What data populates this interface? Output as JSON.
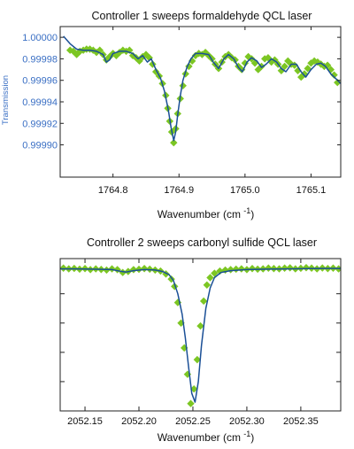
{
  "chart_data": [
    {
      "type": "scatter",
      "title": "Controller 1 sweeps formaldehyde QCL laser",
      "xlabel": "Wavenumber (cm",
      "xlabel_sup": "-1",
      "xlabel_end": ")",
      "ylabel": "Transmission",
      "xlim": [
        1764.72,
        1765.145
      ],
      "ylim": [
        0.99987,
        1.00001
      ],
      "xticks": [
        1764.8,
        1764.9,
        1765.0,
        1765.1
      ],
      "xtick_labels": [
        "1764.8",
        "1764.9",
        "1765.0",
        "1765.1"
      ],
      "yticks": [
        0.9999,
        0.99992,
        0.99994,
        0.99996,
        0.99998,
        1.0
      ],
      "ytick_labels": [
        "0.99990",
        "0.99992",
        "0.99994",
        "0.99996",
        "0.99998",
        "1.00000"
      ],
      "axis_color": "#3a6fc4",
      "marker_color": "#7cc623",
      "line_color": "#1a4f96",
      "series": [
        {
          "kind": "markers",
          "x": [
            1764.735,
            1764.74,
            1764.745,
            1764.75,
            1764.755,
            1764.76,
            1764.765,
            1764.77,
            1764.775,
            1764.78,
            1764.785,
            1764.79,
            1764.795,
            1764.8,
            1764.805,
            1764.81,
            1764.815,
            1764.82,
            1764.825,
            1764.83,
            1764.835,
            1764.84,
            1764.845,
            1764.85,
            1764.855,
            1764.86,
            1764.865,
            1764.87,
            1764.875,
            1764.88,
            1764.883,
            1764.886,
            1764.889,
            1764.892,
            1764.895,
            1764.898,
            1764.902,
            1764.906,
            1764.91,
            1764.915,
            1764.92,
            1764.925,
            1764.93,
            1764.935,
            1764.94,
            1764.945,
            1764.95,
            1764.955,
            1764.96,
            1764.965,
            1764.97,
            1764.975,
            1764.98,
            1764.985,
            1764.99,
            1764.995,
            1765.0,
            1765.005,
            1765.01,
            1765.015,
            1765.02,
            1765.025,
            1765.03,
            1765.035,
            1765.04,
            1765.045,
            1765.05,
            1765.055,
            1765.06,
            1765.065,
            1765.07,
            1765.075,
            1765.08,
            1765.085,
            1765.09,
            1765.095,
            1765.1,
            1765.105,
            1765.11,
            1765.115,
            1765.12,
            1765.125,
            1765.13,
            1765.135,
            1765.14
          ],
          "y": [
            0.999988,
            0.999987,
            0.999984,
            0.999987,
            0.999988,
            0.999989,
            0.999989,
            0.999988,
            0.999986,
            0.999988,
            0.999984,
            0.999979,
            0.999982,
            0.999985,
            0.999983,
            0.999986,
            0.999988,
            0.999987,
            0.999988,
            0.999983,
            0.999981,
            0.999978,
            0.999982,
            0.999984,
            0.999981,
            0.999975,
            0.999968,
            0.999964,
            0.999957,
            0.999946,
            0.999934,
            0.999922,
            0.999912,
            0.999902,
            0.999915,
            0.999929,
            0.999943,
            0.999955,
            0.999966,
            0.999973,
            0.999978,
            0.999983,
            0.999985,
            0.999984,
            0.999986,
            0.999983,
            0.99998,
            0.999975,
            0.999971,
            0.999977,
            0.999982,
            0.999984,
            0.999981,
            0.999979,
            0.999973,
            0.99997,
            0.999976,
            0.999982,
            0.99998,
            0.999976,
            0.99997,
            0.999973,
            0.99998,
            0.999981,
            0.999977,
            0.999979,
            0.999975,
            0.999969,
            0.999973,
            0.999978,
            0.999975,
            0.999974,
            0.999969,
            0.999963,
            0.999966,
            0.999971,
            0.999976,
            0.999978,
            0.999977,
            0.999975,
            0.999973,
            0.999974,
            0.99997,
            0.999965,
            0.999958
          ]
        },
        {
          "kind": "line",
          "x": [
            1764.725,
            1764.735,
            1764.745,
            1764.755,
            1764.765,
            1764.775,
            1764.785,
            1764.79,
            1764.795,
            1764.8,
            1764.81,
            1764.82,
            1764.83,
            1764.838,
            1764.845,
            1764.852,
            1764.858,
            1764.865,
            1764.872,
            1764.878,
            1764.884,
            1764.888,
            1764.892,
            1764.895,
            1764.898,
            1764.902,
            1764.906,
            1764.912,
            1764.918,
            1764.925,
            1764.935,
            1764.945,
            1764.952,
            1764.96,
            1764.968,
            1764.975,
            1764.983,
            1764.99,
            1764.996,
            1765.003,
            1765.01,
            1765.018,
            1765.025,
            1765.032,
            1765.04,
            1765.048,
            1765.055,
            1765.062,
            1765.07,
            1765.078,
            1765.085,
            1765.092,
            1765.1,
            1765.108,
            1765.115,
            1765.122,
            1765.13,
            1765.137,
            1765.145
          ],
          "y": [
            1.000001,
            0.999994,
            0.999989,
            0.999988,
            0.999988,
            0.999987,
            0.999984,
            0.999977,
            0.999979,
            0.999985,
            0.999987,
            0.999987,
            0.999985,
            0.99998,
            0.999983,
            0.999977,
            0.99998,
            0.99997,
            0.999962,
            0.99995,
            0.999932,
            0.999916,
            0.999904,
            0.999912,
            0.999928,
            0.999946,
            0.99996,
            0.999972,
            0.99998,
            0.999985,
            0.999985,
            0.999984,
            0.999977,
            0.999971,
            0.99998,
            0.999984,
            0.99998,
            0.999972,
            0.999968,
            0.999977,
            0.999981,
            0.999978,
            0.999972,
            0.999975,
            0.99998,
            0.999977,
            0.999971,
            0.999968,
            0.999975,
            0.999975,
            0.999968,
            0.999963,
            0.99997,
            0.999975,
            0.999976,
            0.999973,
            0.999966,
            0.999962,
            0.999957
          ]
        }
      ]
    },
    {
      "type": "scatter",
      "title": "Controller 2 sweeps carbonyl sulfide QCL laser",
      "xlabel": "Wavenumber (cm",
      "xlabel_sup": "-1",
      "xlabel_end": ")",
      "xlim": [
        2052.127,
        2052.387
      ],
      "ylim": [
        0,
        1.04
      ],
      "xticks": [
        2052.15,
        2052.2,
        2052.25,
        2052.3,
        2052.35
      ],
      "xtick_labels": [
        "2052.15",
        "2052.20",
        "2052.25",
        "2052.30",
        "2052.35"
      ],
      "yticks": [
        0.2,
        0.4,
        0.6,
        0.8
      ],
      "axis_color": "#222222",
      "marker_color": "#7cc623",
      "line_color": "#1a4f96",
      "series": [
        {
          "kind": "markers",
          "x": [
            2052.13,
            2052.135,
            2052.14,
            2052.145,
            2052.15,
            2052.155,
            2052.16,
            2052.165,
            2052.17,
            2052.175,
            2052.18,
            2052.185,
            2052.19,
            2052.195,
            2052.2,
            2052.205,
            2052.21,
            2052.215,
            2052.22,
            2052.225,
            2052.23,
            2052.233,
            2052.236,
            2052.239,
            2052.242,
            2052.245,
            2052.248,
            2052.251,
            2052.254,
            2052.257,
            2052.26,
            2052.263,
            2052.266,
            2052.27,
            2052.275,
            2052.28,
            2052.285,
            2052.29,
            2052.295,
            2052.3,
            2052.305,
            2052.31,
            2052.315,
            2052.32,
            2052.325,
            2052.33,
            2052.335,
            2052.34,
            2052.345,
            2052.35,
            2052.355,
            2052.36,
            2052.365,
            2052.37,
            2052.375,
            2052.38,
            2052.385
          ],
          "y": [
            0.975,
            0.97,
            0.973,
            0.968,
            0.972,
            0.965,
            0.97,
            0.966,
            0.962,
            0.97,
            0.965,
            0.945,
            0.952,
            0.965,
            0.967,
            0.972,
            0.968,
            0.962,
            0.955,
            0.935,
            0.9,
            0.85,
            0.74,
            0.6,
            0.43,
            0.25,
            0.05,
            0.15,
            0.35,
            0.58,
            0.75,
            0.86,
            0.91,
            0.94,
            0.955,
            0.962,
            0.965,
            0.968,
            0.97,
            0.965,
            0.972,
            0.968,
            0.97,
            0.975,
            0.972,
            0.97,
            0.975,
            0.977,
            0.97,
            0.974,
            0.978,
            0.975,
            0.97,
            0.976,
            0.972,
            0.975,
            0.97
          ]
        },
        {
          "kind": "line",
          "x": [
            2052.127,
            2052.14,
            2052.155,
            2052.165,
            2052.175,
            2052.182,
            2052.188,
            2052.195,
            2052.205,
            2052.215,
            2052.222,
            2052.228,
            2052.232,
            2052.236,
            2052.24,
            2052.243,
            2052.246,
            2052.249,
            2052.252,
            2052.255,
            2052.258,
            2052.262,
            2052.266,
            2052.27,
            2052.276,
            2052.285,
            2052.3,
            2052.32,
            2052.34,
            2052.36,
            2052.375,
            2052.387
          ],
          "y": [
            0.97,
            0.97,
            0.968,
            0.967,
            0.965,
            0.955,
            0.948,
            0.958,
            0.965,
            0.962,
            0.952,
            0.93,
            0.89,
            0.8,
            0.66,
            0.5,
            0.3,
            0.12,
            0.06,
            0.2,
            0.45,
            0.7,
            0.84,
            0.91,
            0.945,
            0.958,
            0.965,
            0.968,
            0.97,
            0.972,
            0.973,
            0.972
          ]
        }
      ]
    }
  ]
}
